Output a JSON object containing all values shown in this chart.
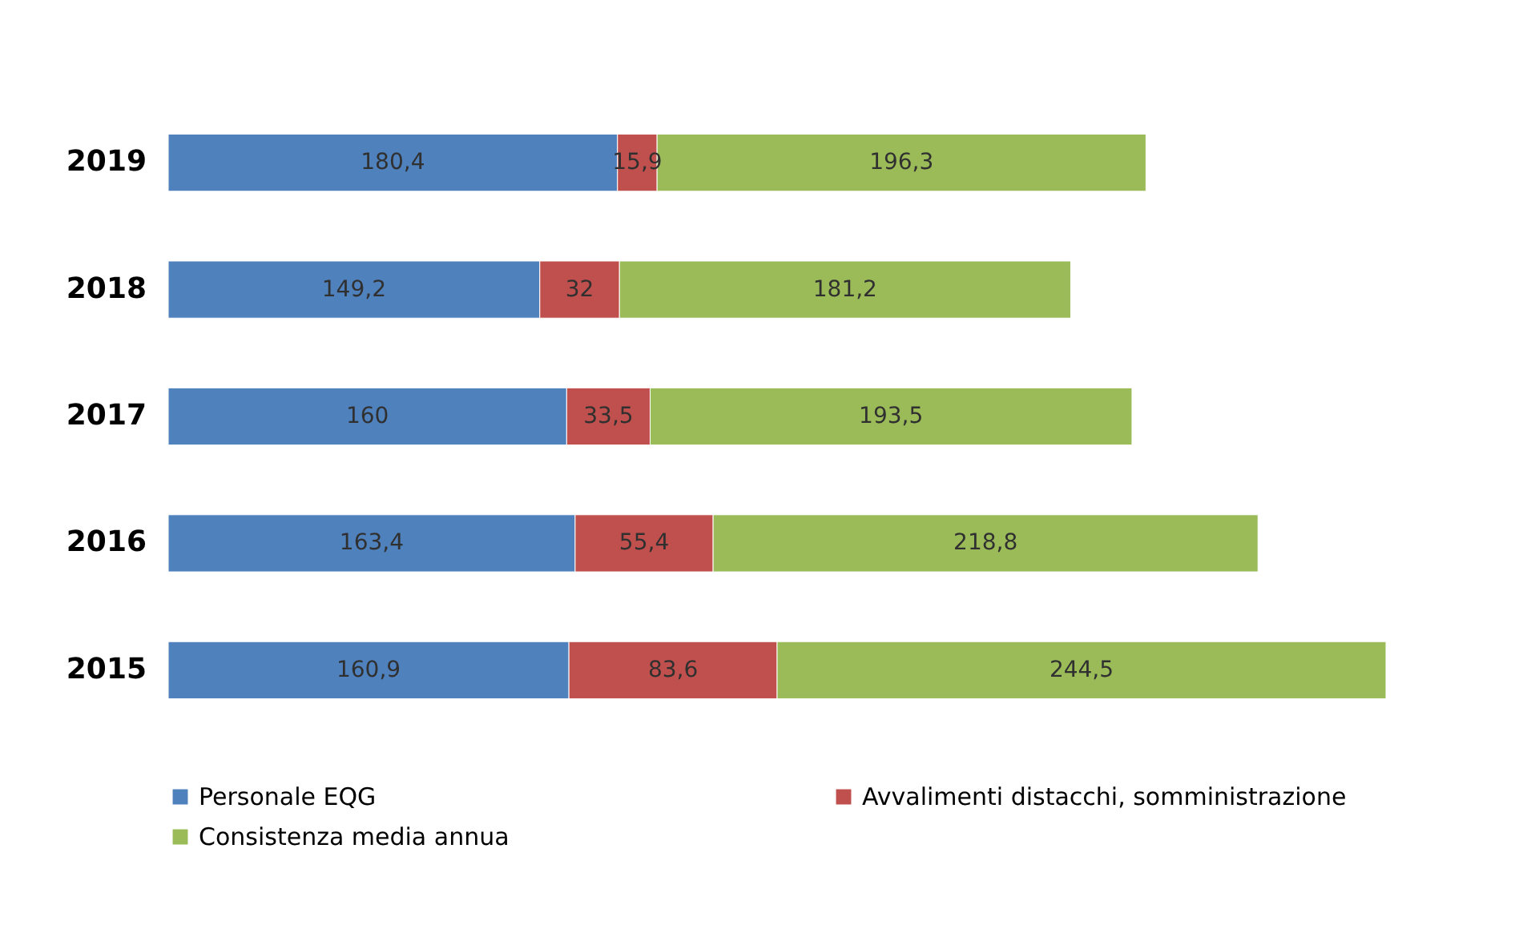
{
  "chart_data": {
    "type": "bar",
    "orientation": "horizontal",
    "stacked": true,
    "legend": "bottom",
    "categories": [
      "2019",
      "2018",
      "2017",
      "2016",
      "2015"
    ],
    "series": [
      {
        "name": "Personale EQG",
        "color": "#4f81bd",
        "values": [
          180.4,
          149.2,
          160,
          163.4,
          160.9
        ],
        "value_labels": [
          "180,4",
          "149,2",
          "160",
          "163,4",
          "160,9"
        ]
      },
      {
        "name": "Avvalimenti distacchi, somministrazione",
        "color": "#c0504d",
        "values": [
          15.9,
          32,
          33.5,
          55.4,
          83.6
        ],
        "value_labels": [
          "15,9",
          "32",
          "33,5",
          "55,4",
          "83,6"
        ]
      },
      {
        "name": "Consistenza media annua",
        "color": "#9bbb59",
        "values": [
          196.3,
          181.2,
          193.5,
          218.8,
          244.5
        ],
        "value_labels": [
          "196,3",
          "181,2",
          "193,5",
          "218,8",
          "244,5"
        ]
      }
    ]
  }
}
